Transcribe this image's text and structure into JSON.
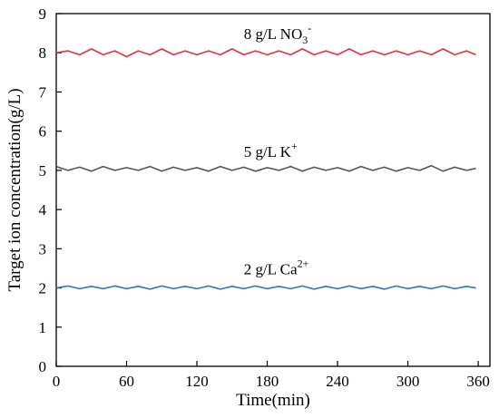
{
  "chart_data": {
    "type": "line",
    "xlabel": "Time(min)",
    "ylabel": "Target ion concentration(g/L)",
    "xlim": [
      0,
      370
    ],
    "ylim": [
      0,
      9
    ],
    "xticks": [
      0,
      60,
      120,
      180,
      240,
      300,
      360
    ],
    "yticks": [
      0,
      1,
      2,
      3,
      4,
      5,
      6,
      7,
      8,
      9
    ],
    "grid": false,
    "series": [
      {
        "color": "#e8323c",
        "x": [
          0,
          10,
          20,
          30,
          40,
          50,
          60,
          70,
          80,
          90,
          100,
          110,
          120,
          130,
          140,
          150,
          160,
          170,
          180,
          190,
          200,
          210,
          220,
          230,
          240,
          250,
          260,
          270,
          280,
          290,
          300,
          310,
          320,
          330,
          340,
          350,
          358
        ],
        "y": [
          8.0,
          8.05,
          7.95,
          8.1,
          7.95,
          8.05,
          7.9,
          8.05,
          7.95,
          8.1,
          7.95,
          8.05,
          7.95,
          8.05,
          7.95,
          8.1,
          7.95,
          8.05,
          7.95,
          8.05,
          7.95,
          8.1,
          7.95,
          8.05,
          7.95,
          8.1,
          7.95,
          8.05,
          7.95,
          8.05,
          7.95,
          8.05,
          7.95,
          8.1,
          7.95,
          8.05,
          7.95
        ]
      },
      {
        "color": "#555555",
        "x": [
          0,
          10,
          20,
          30,
          40,
          50,
          60,
          70,
          80,
          90,
          100,
          110,
          120,
          130,
          140,
          150,
          160,
          170,
          180,
          190,
          200,
          210,
          220,
          230,
          240,
          250,
          260,
          270,
          280,
          290,
          300,
          310,
          320,
          330,
          340,
          350,
          358
        ],
        "y": [
          5.1,
          5.0,
          5.08,
          4.98,
          5.1,
          5.0,
          5.07,
          5.0,
          5.1,
          4.98,
          5.08,
          5.0,
          5.07,
          4.98,
          5.1,
          5.0,
          5.08,
          4.98,
          5.07,
          5.0,
          5.1,
          4.98,
          5.08,
          5.0,
          5.07,
          4.98,
          5.1,
          5.0,
          5.08,
          4.98,
          5.07,
          5.0,
          5.12,
          4.98,
          5.08,
          5.0,
          5.05
        ]
      },
      {
        "color": "#2f6fd6",
        "x": [
          0,
          10,
          20,
          30,
          40,
          50,
          60,
          70,
          80,
          90,
          100,
          110,
          120,
          130,
          140,
          150,
          160,
          170,
          180,
          190,
          200,
          210,
          220,
          230,
          240,
          250,
          260,
          270,
          280,
          290,
          300,
          310,
          320,
          330,
          340,
          350,
          358
        ],
        "y": [
          2.0,
          2.05,
          1.98,
          2.04,
          1.98,
          2.05,
          1.98,
          2.04,
          1.97,
          2.05,
          1.98,
          2.04,
          1.98,
          2.05,
          1.97,
          2.04,
          1.98,
          2.05,
          1.98,
          2.04,
          1.98,
          2.05,
          1.97,
          2.04,
          1.98,
          2.05,
          1.98,
          2.04,
          1.97,
          2.05,
          1.98,
          2.04,
          1.98,
          2.05,
          1.98,
          2.04,
          2.0
        ]
      }
    ],
    "annotations": [
      {
        "text": "8 g/L NO",
        "sub": "3",
        "sup": "-",
        "x": 160,
        "y": 8.35
      },
      {
        "text": "5 g/L K",
        "sub": "",
        "sup": "+",
        "x": 160,
        "y": 5.35
      },
      {
        "text": "2 g/L Ca",
        "sub": "",
        "sup": "2+",
        "x": 160,
        "y": 2.35
      }
    ]
  }
}
